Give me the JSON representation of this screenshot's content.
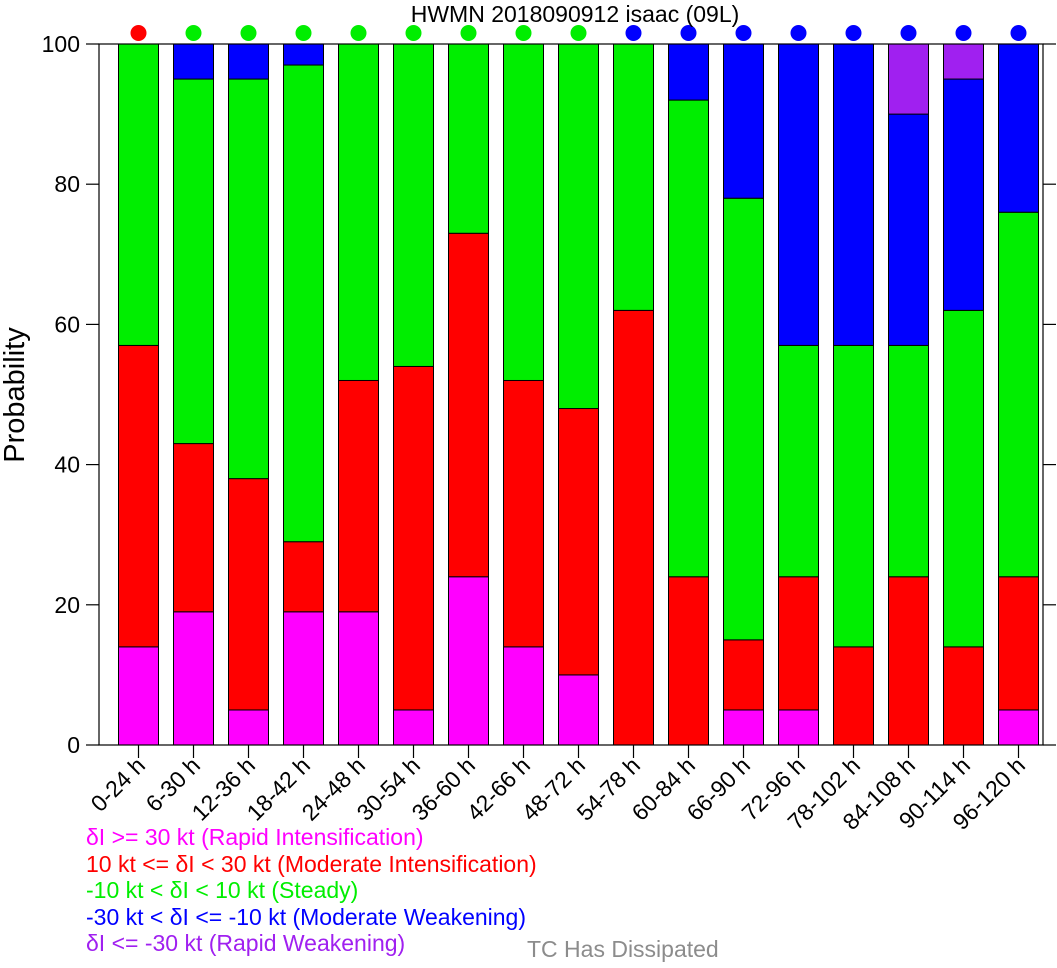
{
  "chart_data": {
    "type": "bar",
    "stacked": true,
    "title": "HWMN 2018090912 isaac (09L)",
    "xlabel": "",
    "ylabel": "Probability",
    "ylim": [
      0,
      100
    ],
    "yticks": [
      "0",
      "20",
      "40",
      "60",
      "80",
      "100"
    ],
    "grid": false,
    "categories": [
      "0-24 h",
      "6-30 h",
      "12-36 h",
      "18-42 h",
      "24-48 h",
      "30-54 h",
      "36-60 h",
      "42-66 h",
      "48-72 h",
      "54-78 h",
      "60-84 h",
      "66-90 h",
      "72-96 h",
      "78-102 h",
      "84-108 h",
      "90-114 h",
      "96-120 h"
    ],
    "series": [
      {
        "name": "δI >= 30 kt (Rapid Intensification)",
        "color": "#ff00ff",
        "values": [
          14,
          19,
          5,
          19,
          19,
          5,
          24,
          14,
          10,
          0,
          0,
          5,
          5,
          0,
          0,
          0,
          5
        ]
      },
      {
        "name": "10 kt <= δI < 30 kt (Moderate Intensification)",
        "color": "#ff0000",
        "values": [
          43,
          24,
          33,
          10,
          33,
          49,
          49,
          38,
          38,
          62,
          24,
          10,
          19,
          14,
          24,
          14,
          19
        ]
      },
      {
        "name": "-10 kt < δI < 10 kt (Steady)",
        "color": "#00ee00",
        "values": [
          43,
          52,
          57,
          68,
          48,
          46,
          27,
          48,
          52,
          38,
          68,
          63,
          33,
          43,
          33,
          48,
          52
        ]
      },
      {
        "name": "-30 kt < δI <= -10 kt (Moderate Weakening)",
        "color": "#0000ff",
        "values": [
          0,
          5,
          5,
          3,
          0,
          0,
          0,
          0,
          0,
          0,
          8,
          22,
          43,
          43,
          33,
          33,
          24
        ]
      },
      {
        "name": "δI <= -30 kt (Rapid Weakening)",
        "color": "#a020f0",
        "values": [
          0,
          0,
          0,
          0,
          0,
          0,
          0,
          0,
          0,
          0,
          0,
          0,
          0,
          0,
          10,
          5,
          0
        ]
      }
    ],
    "dissipated_label": "TC Has Dissipated",
    "dissipated_color": "#8c8c8c",
    "indicator_colors": [
      "#ff0000",
      "#00ee00",
      "#00ee00",
      "#00ee00",
      "#00ee00",
      "#00ee00",
      "#00ee00",
      "#00ee00",
      "#00ee00",
      "#0000ff",
      "#0000ff",
      "#0000ff",
      "#0000ff",
      "#0000ff",
      "#0000ff",
      "#0000ff",
      "#0000ff"
    ]
  }
}
